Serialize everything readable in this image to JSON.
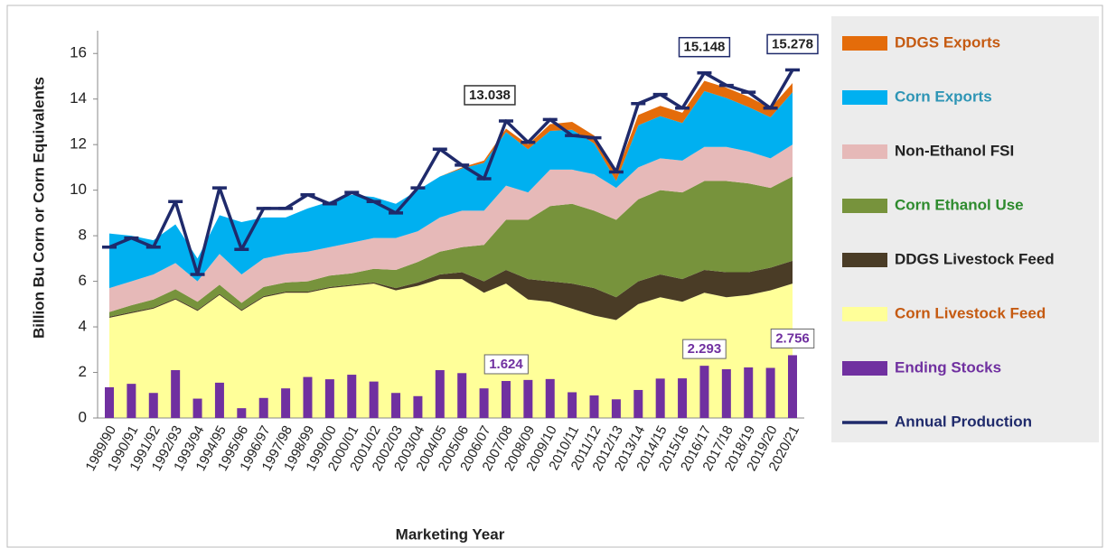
{
  "chart_data": {
    "type": "stacked-area",
    "xlabel": "Marketing Year",
    "ylabel": "Billion Bu Corn or Corn Equivalents",
    "categories": [
      "1989/90",
      "1990/91",
      "1991/92",
      "1992/93",
      "1993/94",
      "1994/95",
      "1995/96",
      "1996/97",
      "1997/98",
      "1998/99",
      "1999/00",
      "2000/01",
      "2001/02",
      "2002/03",
      "2003/04",
      "2004/05",
      "2005/06",
      "2006/07",
      "2007/08",
      "2008/09",
      "2009/10",
      "2010/11",
      "2011/12",
      "2012/13",
      "2013/14",
      "2014/15",
      "2015/16",
      "2016/17",
      "2017/18",
      "2018/19",
      "2019/20",
      "2020/21"
    ],
    "ylim": [
      0,
      17
    ],
    "yticks": [
      0,
      2,
      4,
      6,
      8,
      10,
      12,
      14,
      16
    ],
    "series": [
      {
        "name": "Corn Livestock Feed",
        "color": "#ffff99",
        "values": [
          4.4,
          4.6,
          4.8,
          5.2,
          4.7,
          5.4,
          4.7,
          5.3,
          5.5,
          5.5,
          5.7,
          5.8,
          5.9,
          5.6,
          5.8,
          6.1,
          6.1,
          5.5,
          5.9,
          5.2,
          5.1,
          4.8,
          4.5,
          4.3,
          5.0,
          5.3,
          5.1,
          5.5,
          5.3,
          5.4,
          5.6,
          5.9
        ]
      },
      {
        "name": "DDGS Livestock Feed",
        "color": "#4a3c26",
        "values": [
          0.05,
          0.05,
          0.05,
          0.05,
          0.05,
          0.05,
          0.05,
          0.05,
          0.05,
          0.05,
          0.05,
          0.05,
          0.05,
          0.1,
          0.15,
          0.2,
          0.3,
          0.5,
          0.6,
          0.9,
          0.9,
          1.1,
          1.2,
          1.0,
          1.0,
          1.0,
          1.0,
          1.0,
          1.1,
          1.0,
          1.0,
          1.0
        ]
      },
      {
        "name": "Corn Ethanol Use",
        "color": "#77933c",
        "values": [
          0.2,
          0.3,
          0.35,
          0.4,
          0.35,
          0.4,
          0.3,
          0.4,
          0.4,
          0.45,
          0.5,
          0.5,
          0.6,
          0.8,
          0.9,
          1.0,
          1.1,
          1.6,
          2.2,
          2.6,
          3.3,
          3.5,
          3.4,
          3.4,
          3.6,
          3.7,
          3.8,
          3.9,
          4.0,
          3.9,
          3.5,
          3.7
        ]
      },
      {
        "name": "Non-Ethanol FSI",
        "color": "#e6b9b8",
        "values": [
          1.05,
          1.05,
          1.1,
          1.15,
          0.9,
          1.35,
          1.25,
          1.25,
          1.25,
          1.3,
          1.25,
          1.35,
          1.35,
          1.4,
          1.35,
          1.5,
          1.6,
          1.5,
          1.5,
          1.2,
          1.6,
          1.5,
          1.6,
          1.4,
          1.4,
          1.4,
          1.4,
          1.5,
          1.5,
          1.4,
          1.3,
          1.4
        ]
      },
      {
        "name": "Corn Exports",
        "color": "#00b0f0",
        "values": [
          2.4,
          2.0,
          1.5,
          1.7,
          1.0,
          1.7,
          2.3,
          1.8,
          1.6,
          1.9,
          2.0,
          2.1,
          1.8,
          1.5,
          1.8,
          1.8,
          1.85,
          2.1,
          2.35,
          1.9,
          1.7,
          1.75,
          1.35,
          0.3,
          1.85,
          1.85,
          1.65,
          2.45,
          2.15,
          1.95,
          1.8,
          2.3
        ]
      },
      {
        "name": "DDGS Exports",
        "color": "#e46c0a",
        "values": [
          0,
          0,
          0,
          0,
          0,
          0,
          0,
          0,
          0,
          0,
          0,
          0,
          0,
          0,
          0,
          0,
          0.05,
          0.1,
          0.15,
          0.2,
          0.3,
          0.35,
          0.35,
          0.3,
          0.45,
          0.45,
          0.45,
          0.45,
          0.45,
          0.45,
          0.4,
          0.4
        ]
      }
    ],
    "bars": {
      "name": "Ending Stocks",
      "color": "#7030a0",
      "values": [
        1.35,
        1.5,
        1.1,
        2.1,
        0.85,
        1.55,
        0.43,
        0.88,
        1.3,
        1.8,
        1.7,
        1.9,
        1.6,
        1.1,
        0.96,
        2.1,
        1.97,
        1.3,
        1.624,
        1.67,
        1.71,
        1.13,
        0.99,
        0.82,
        1.23,
        1.73,
        1.74,
        2.293,
        2.14,
        2.22,
        2.2,
        2.756
      ],
      "labeled_points": [
        18,
        27,
        31
      ]
    },
    "line": {
      "name": "Annual Production",
      "color": "#1f2a6b",
      "values": [
        7.5,
        7.9,
        7.5,
        9.5,
        6.3,
        10.1,
        7.4,
        9.2,
        9.2,
        9.8,
        9.4,
        9.9,
        9.5,
        9.0,
        10.1,
        11.8,
        11.1,
        10.5,
        13.038,
        12.1,
        13.1,
        12.4,
        12.3,
        10.8,
        13.8,
        14.2,
        13.6,
        15.148,
        14.6,
        14.3,
        13.6,
        15.278
      ],
      "labeled_points": [
        18,
        27,
        31
      ]
    },
    "legend": "right"
  }
}
